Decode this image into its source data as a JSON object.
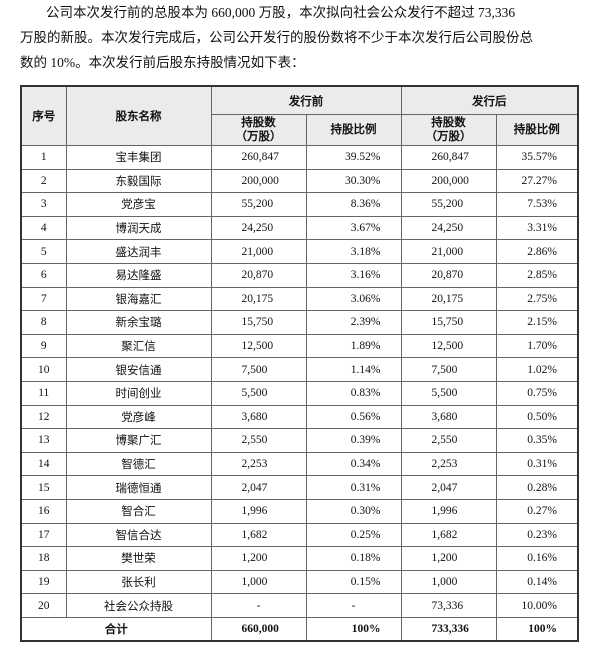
{
  "paragraph": [
    "公司本次发行前的总股本为 660,000 万股，本次拟向社会公众发行不超过 73,336",
    "万股的新股。本次发行完成后，公司公开发行的股份数将不少于本次发行后公司股份总",
    "数的 10%。本次发行前后股东持股情况如下表："
  ],
  "table": {
    "header": {
      "no": "序号",
      "name": "股东名称",
      "before": "发行前",
      "after": "发行后",
      "shares": [
        "持股数",
        "（万股）"
      ],
      "ratio": "持股比例"
    },
    "rows": [
      [
        "1",
        "宝丰集团",
        "260,847",
        "39.52%",
        "260,847",
        "35.57%"
      ],
      [
        "2",
        "东毅国际",
        "200,000",
        "30.30%",
        "200,000",
        "27.27%"
      ],
      [
        "3",
        "党彦宝",
        "55,200",
        "8.36%",
        "55,200",
        "7.53%"
      ],
      [
        "4",
        "博润天成",
        "24,250",
        "3.67%",
        "24,250",
        "3.31%"
      ],
      [
        "5",
        "盛达润丰",
        "21,000",
        "3.18%",
        "21,000",
        "2.86%"
      ],
      [
        "6",
        "易达隆盛",
        "20,870",
        "3.16%",
        "20,870",
        "2.85%"
      ],
      [
        "7",
        "银海嘉汇",
        "20,175",
        "3.06%",
        "20,175",
        "2.75%"
      ],
      [
        "8",
        "新余宝璐",
        "15,750",
        "2.39%",
        "15,750",
        "2.15%"
      ],
      [
        "9",
        "聚汇信",
        "12,500",
        "1.89%",
        "12,500",
        "1.70%"
      ],
      [
        "10",
        "银安信通",
        "7,500",
        "1.14%",
        "7,500",
        "1.02%"
      ],
      [
        "11",
        "时间创业",
        "5,500",
        "0.83%",
        "5,500",
        "0.75%"
      ],
      [
        "12",
        "党彦峰",
        "3,680",
        "0.56%",
        "3,680",
        "0.50%"
      ],
      [
        "13",
        "博聚广汇",
        "2,550",
        "0.39%",
        "2,550",
        "0.35%"
      ],
      [
        "14",
        "智德汇",
        "2,253",
        "0.34%",
        "2,253",
        "0.31%"
      ],
      [
        "15",
        "瑞德恒通",
        "2,047",
        "0.31%",
        "2,047",
        "0.28%"
      ],
      [
        "16",
        "智合汇",
        "1,996",
        "0.30%",
        "1,996",
        "0.27%"
      ],
      [
        "17",
        "智信合达",
        "1,682",
        "0.25%",
        "1,682",
        "0.23%"
      ],
      [
        "18",
        "樊世荣",
        "1,200",
        "0.18%",
        "1,200",
        "0.16%"
      ],
      [
        "19",
        "张长利",
        "1,000",
        "0.15%",
        "1,000",
        "0.14%"
      ],
      [
        "20",
        "社会公众持股",
        "-",
        "-",
        "73,336",
        "10.00%"
      ]
    ],
    "total": [
      "合计",
      "660,000",
      "100%",
      "733,336",
      "100%"
    ]
  }
}
